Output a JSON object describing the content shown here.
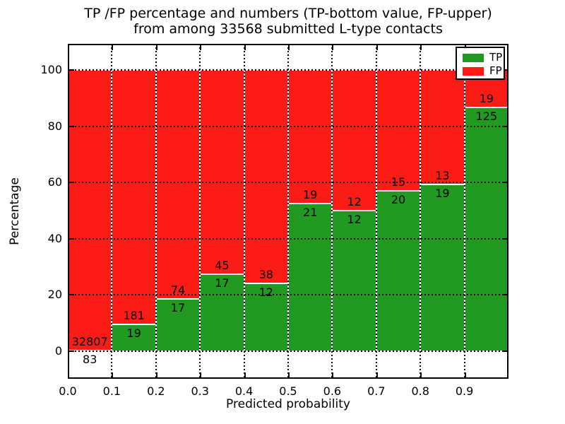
{
  "chart_data": {
    "type": "bar",
    "stacked": true,
    "normalized_to_percent": true,
    "title": "TP /FP percentage and numbers (TP-bottom value, FP-upper) from among 33568 submitted L-type contacts",
    "title_lines": [
      "TP /FP percentage and numbers (TP-bottom value, FP-upper)",
      "from among 33568 submitted L-type contacts"
    ],
    "total_submitted_contacts": "33568",
    "xlabel": "Predicted probability",
    "ylabel": "Percentage",
    "x_tick_labels": [
      "0.0",
      "0.1",
      "0.2",
      "0.3",
      "0.4",
      "0.5",
      "0.6",
      "0.7",
      "0.8",
      "0.9"
    ],
    "y_ticks": [
      0,
      20,
      40,
      60,
      80,
      100
    ],
    "xlim": [
      0.0,
      1.0
    ],
    "ylim": [
      -10,
      110
    ],
    "grid": true,
    "grid_style": "dotted",
    "bar_edge_color": "#ffffff",
    "legend_position": "upper right",
    "categories": [
      "0.0-0.1",
      "0.1-0.2",
      "0.2-0.3",
      "0.3-0.4",
      "0.4-0.5",
      "0.5-0.6",
      "0.6-0.7",
      "0.7-0.8",
      "0.8-0.9",
      "0.9-1.0"
    ],
    "series": [
      {
        "name": "TP",
        "color": "#229a22",
        "values": [
          83,
          19,
          17,
          17,
          12,
          21,
          12,
          20,
          19,
          125
        ]
      },
      {
        "name": "FP",
        "color": "#fb1d15",
        "values": [
          32807,
          181,
          74,
          45,
          38,
          19,
          12,
          15,
          13,
          19
        ]
      }
    ],
    "tp_percent_by_bin": [
      0.25,
      9.5,
      18.68,
      27.42,
      24.0,
      52.5,
      50.0,
      57.14,
      59.38,
      86.81
    ]
  }
}
